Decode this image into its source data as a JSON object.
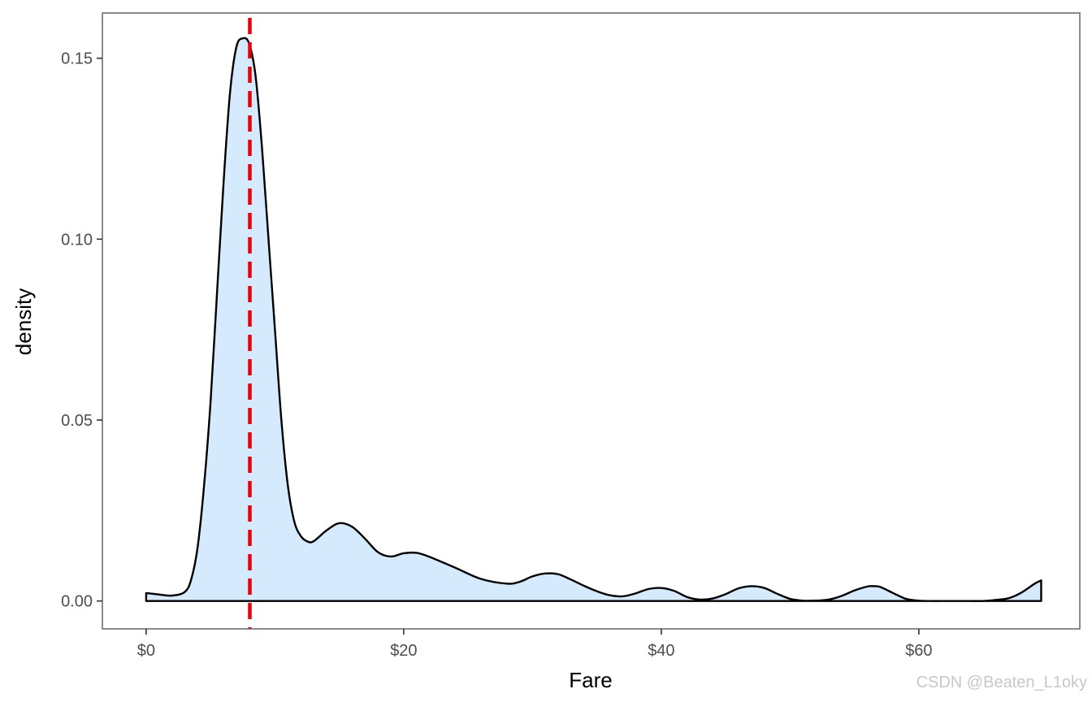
{
  "chart_data": {
    "type": "area",
    "xlabel": "Fare",
    "ylabel": "density",
    "xlim": [
      -3.4,
      72.5
    ],
    "ylim": [
      -0.0077,
      0.1625
    ],
    "x_ticks": [
      0,
      20,
      40,
      60
    ],
    "x_tick_labels": [
      "$0",
      "$20",
      "$40",
      "$60"
    ],
    "y_ticks": [
      0.0,
      0.05,
      0.1,
      0.15
    ],
    "y_tick_labels": [
      "0.00",
      "0.05",
      "0.10",
      "0.15"
    ],
    "grid": false,
    "legend": "none",
    "series": [
      {
        "x": [
          0,
          1,
          2,
          3,
          3.5,
          4,
          4.5,
          5,
          5.5,
          6,
          6.5,
          7,
          7.5,
          8,
          8.5,
          9,
          9.5,
          10,
          10.5,
          11,
          11.5,
          12,
          12.5,
          13,
          14,
          15,
          16,
          17,
          18,
          19,
          20,
          21,
          22,
          24,
          26,
          28,
          29,
          30,
          31,
          32,
          33,
          34,
          35,
          36,
          37,
          38,
          39,
          40,
          41,
          42,
          43,
          44,
          45,
          46,
          47,
          48,
          49,
          50,
          51,
          52,
          53,
          54,
          55,
          56,
          56.5,
          57,
          58,
          59,
          60,
          61,
          62,
          63,
          64,
          65,
          66,
          67,
          68,
          69,
          69.5
        ],
        "y": [
          0.0022,
          0.0018,
          0.0015,
          0.0025,
          0.006,
          0.015,
          0.032,
          0.055,
          0.085,
          0.115,
          0.14,
          0.153,
          0.1555,
          0.154,
          0.145,
          0.125,
          0.1,
          0.075,
          0.05,
          0.032,
          0.022,
          0.018,
          0.0165,
          0.0165,
          0.0195,
          0.0215,
          0.0205,
          0.0172,
          0.0135,
          0.0123,
          0.0132,
          0.0133,
          0.0122,
          0.0092,
          0.0061,
          0.0048,
          0.0053,
          0.0068,
          0.0076,
          0.0074,
          0.0059,
          0.0042,
          0.0027,
          0.0016,
          0.0013,
          0.0021,
          0.0033,
          0.0036,
          0.0028,
          0.0011,
          0.0004,
          0.0007,
          0.0019,
          0.0035,
          0.0041,
          0.0036,
          0.002,
          0.0006,
          0.0001,
          0.0001,
          0.0004,
          0.0014,
          0.0029,
          0.004,
          0.0041,
          0.0039,
          0.0022,
          0.0006,
          0.0001,
          0.0,
          0.0,
          0.0,
          0.0,
          0.0,
          0.0003,
          0.0008,
          0.0024,
          0.0048,
          0.0057
        ]
      }
    ],
    "fill_color": "#d6eafd",
    "line_color": "#000000",
    "reference_line": {
      "x": 8.05,
      "color": "#e8000b",
      "style": "dashed"
    }
  },
  "watermark": "CSDN @Beaten_L1oky"
}
